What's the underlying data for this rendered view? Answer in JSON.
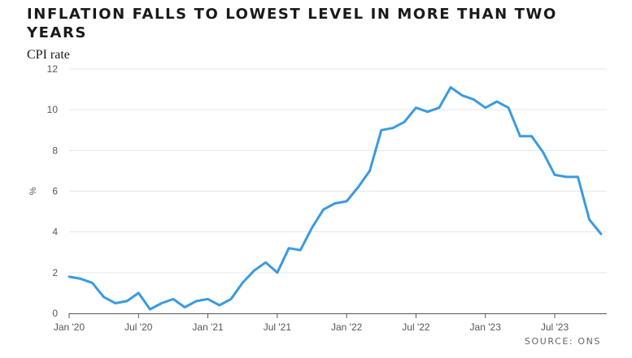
{
  "title": "INFLATION FALLS TO LOWEST LEVEL IN MORE THAN TWO YEARS",
  "subtitle": "CPI rate",
  "source": "SOURCE: ONS",
  "colors": {
    "line": "#3b9ae1",
    "grid": "#e6e6e6",
    "axis": "#555555"
  },
  "chart_data": {
    "type": "line",
    "title": "INFLATION FALLS TO LOWEST LEVEL IN MORE THAN TWO YEARS",
    "subtitle": "CPI rate",
    "ylabel": "%",
    "xlabel": "",
    "ylim": [
      0,
      12
    ],
    "yticks": [
      "0",
      "2",
      "4",
      "6",
      "8",
      "10",
      "12"
    ],
    "grid": true,
    "legend": "none",
    "xticks": [
      {
        "label": "Jan '20",
        "x": "2020-01"
      },
      {
        "label": "Jul '20",
        "x": "2020-07"
      },
      {
        "label": "Jan '21",
        "x": "2021-01"
      },
      {
        "label": "Jul '21",
        "x": "2021-07"
      },
      {
        "label": "Jan '22",
        "x": "2022-01"
      },
      {
        "label": "Jul '22",
        "x": "2022-07"
      },
      {
        "label": "Jan '23",
        "x": "2023-01"
      },
      {
        "label": "Jul '23",
        "x": "2023-07"
      }
    ],
    "x": [
      "2020-01",
      "2020-02",
      "2020-03",
      "2020-04",
      "2020-05",
      "2020-06",
      "2020-07",
      "2020-08",
      "2020-09",
      "2020-10",
      "2020-11",
      "2020-12",
      "2021-01",
      "2021-02",
      "2021-03",
      "2021-04",
      "2021-05",
      "2021-06",
      "2021-07",
      "2021-08",
      "2021-09",
      "2021-10",
      "2021-11",
      "2021-12",
      "2022-01",
      "2022-02",
      "2022-03",
      "2022-04",
      "2022-05",
      "2022-06",
      "2022-07",
      "2022-08",
      "2022-09",
      "2022-10",
      "2022-11",
      "2022-12",
      "2023-01",
      "2023-02",
      "2023-03",
      "2023-04",
      "2023-05",
      "2023-06",
      "2023-07",
      "2023-08",
      "2023-09",
      "2023-10",
      "2023-11"
    ],
    "values": [
      1.8,
      1.7,
      1.5,
      0.8,
      0.5,
      0.6,
      1.0,
      0.2,
      0.5,
      0.7,
      0.3,
      0.6,
      0.7,
      0.4,
      0.7,
      1.5,
      2.1,
      2.5,
      2.0,
      3.2,
      3.1,
      4.2,
      5.1,
      5.4,
      5.5,
      6.2,
      7.0,
      9.0,
      9.1,
      9.4,
      10.1,
      9.9,
      10.1,
      11.1,
      10.7,
      10.5,
      10.1,
      10.4,
      10.1,
      8.7,
      8.7,
      7.9,
      6.8,
      6.7,
      6.7,
      4.6,
      3.9
    ]
  }
}
